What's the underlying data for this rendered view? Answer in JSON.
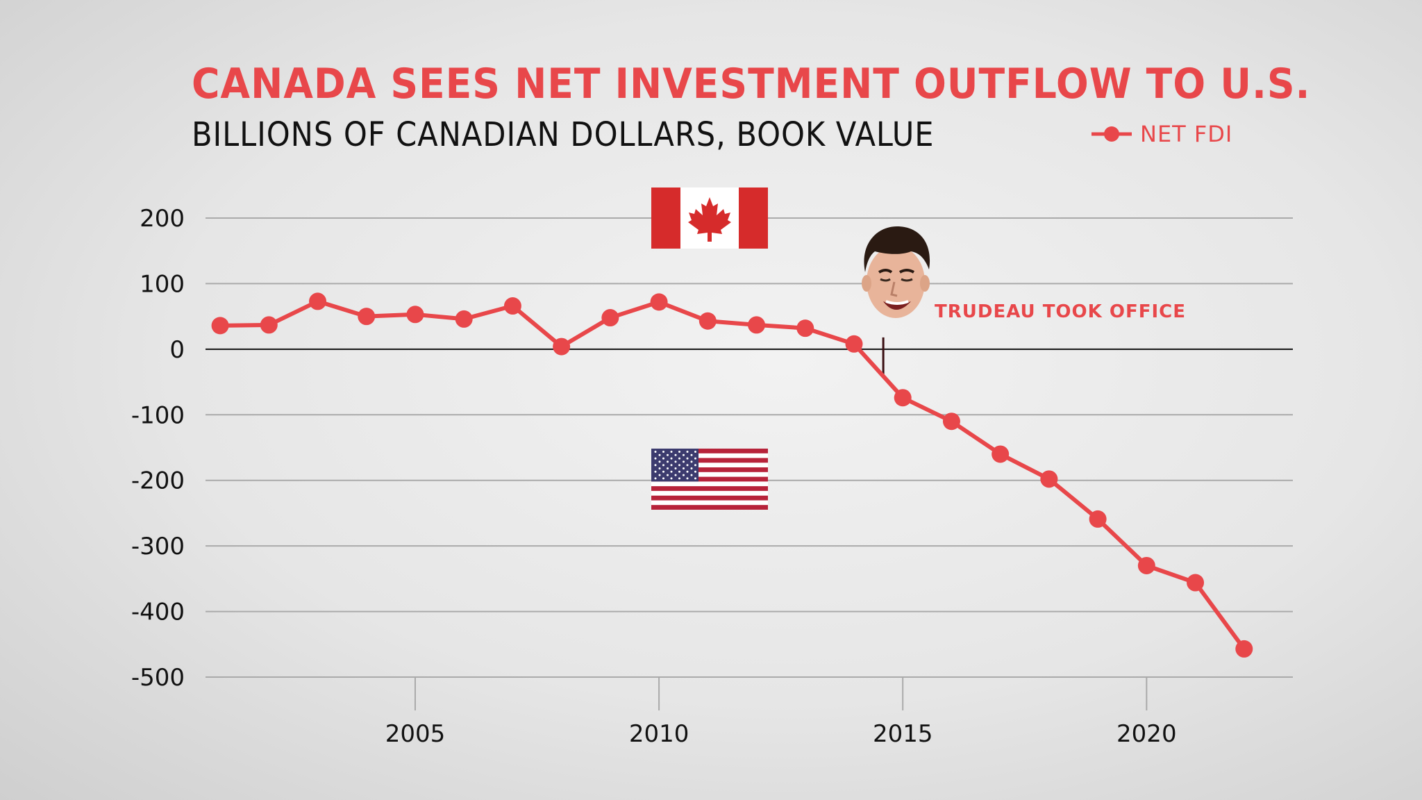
{
  "title": "CANADA SEES NET INVESTMENT OUTFLOW TO U.S.",
  "subtitle": "BILLIONS OF CANADIAN DOLLARS, BOOK VALUE",
  "legend": {
    "label": "NET FDI",
    "color": "#e8474a"
  },
  "annotation": "TRUDEAU TOOK OFFICE",
  "icons": {
    "canada_flag": "canada-flag-icon",
    "us_flag": "us-flag-icon",
    "portrait": "trudeau-face-icon"
  },
  "chart_data": {
    "type": "line",
    "title": "CANADA SEES NET INVESTMENT OUTFLOW TO U.S.",
    "subtitle": "BILLIONS OF CANADIAN DOLLARS, BOOK VALUE",
    "xlabel": "",
    "ylabel": "",
    "ylim": [
      -500,
      200
    ],
    "xlim": [
      2000.7,
      2023.0
    ],
    "yticks": [
      200,
      100,
      0,
      -100,
      -200,
      -300,
      -400,
      -500
    ],
    "ytick_labels": [
      "200",
      "100",
      "0",
      "-100",
      "-200",
      "-300",
      "-400",
      "-500"
    ],
    "xticks": [
      2005,
      2010,
      2015,
      2020
    ],
    "xtick_labels": [
      "2005",
      "2010",
      "2015",
      "2020"
    ],
    "grid": true,
    "legend_position": "top-right",
    "annotation": {
      "x": 2014.6,
      "text": "TRUDEAU TOOK OFFICE"
    },
    "series": [
      {
        "name": "NET FDI",
        "color": "#e8474a",
        "x": [
          2001,
          2002,
          2003,
          2004,
          2005,
          2006,
          2007,
          2008,
          2009,
          2010,
          2011,
          2012,
          2013,
          2014,
          2015,
          2016,
          2017,
          2018,
          2019,
          2020,
          2021,
          2022
        ],
        "values": [
          36,
          37,
          73,
          50,
          53,
          46,
          66,
          4,
          48,
          72,
          43,
          37,
          32,
          8,
          -74,
          -110,
          -160,
          -198,
          -259,
          -330,
          -356,
          -457
        ]
      }
    ]
  }
}
